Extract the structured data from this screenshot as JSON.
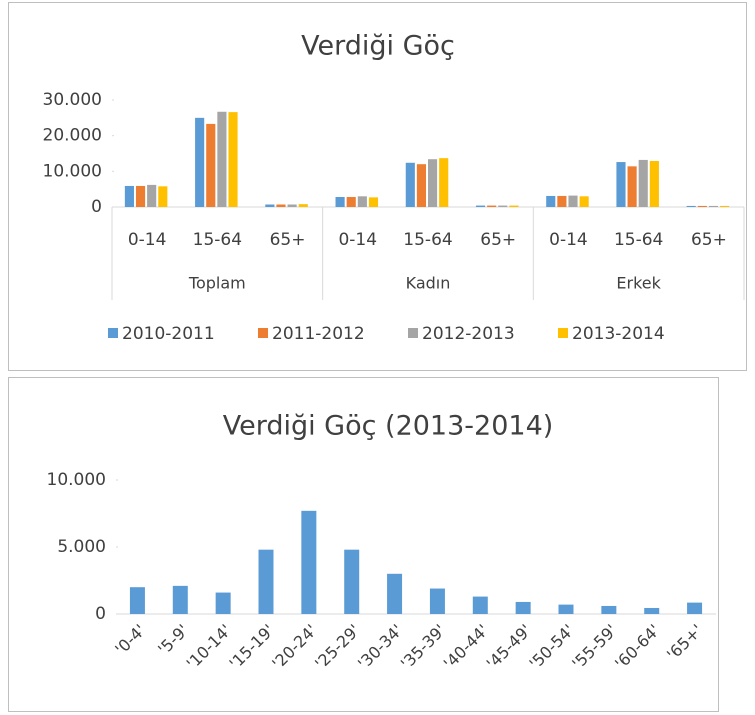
{
  "chart_data": [
    {
      "type": "grouped_bar",
      "title": "Verdiği Göç",
      "categories": [
        "0-14",
        "15-64",
        "65+",
        "0-14",
        "15-64",
        "65+",
        "0-14",
        "15-64",
        "65+"
      ],
      "category_groups": [
        "Toplam",
        "Kadın",
        "Erkek"
      ],
      "series": [
        {
          "name": "2010-2011",
          "color": "#5b9bd5",
          "values": [
            5900,
            25000,
            700,
            2800,
            12400,
            400,
            3100,
            12600,
            300
          ]
        },
        {
          "name": "2011-2012",
          "color": "#ed7d31",
          "values": [
            5900,
            23300,
            700,
            2800,
            12000,
            400,
            3100,
            11400,
            300
          ]
        },
        {
          "name": "2012-2013",
          "color": "#a5a5a5",
          "values": [
            6200,
            26700,
            700,
            3000,
            13400,
            400,
            3200,
            13200,
            300
          ]
        },
        {
          "name": "2013-2014",
          "color": "#ffc000",
          "values": [
            5800,
            26600,
            800,
            2700,
            13700,
            400,
            3000,
            12900,
            300
          ]
        }
      ],
      "ylim": [
        0,
        30000
      ],
      "yticks": [
        0,
        {
          "value": 10000,
          "label": "10.000"
        },
        {
          "value": 20000,
          "label": "20.000"
        },
        {
          "value": 30000,
          "label": "30.000"
        }
      ],
      "legend": "bottom"
    },
    {
      "type": "bar",
      "title": "Verdiği Göç (2013-2014)",
      "categories": [
        "'0-4'",
        "'5-9'",
        "'10-14'",
        "'15-19'",
        "'20-24'",
        "'25-29'",
        "'30-34'",
        "'35-39'",
        "'40-44'",
        "'45-49'",
        "'50-54'",
        "'55-59'",
        "'60-64'",
        "'65+'"
      ],
      "values": [
        2000,
        2100,
        1600,
        4800,
        7700,
        4800,
        3000,
        1900,
        1300,
        900,
        700,
        600,
        450,
        850
      ],
      "color": "#5b9bd5",
      "ylim": [
        0,
        10000
      ],
      "yticks": [
        0,
        {
          "value": 5000,
          "label": "5.000"
        },
        {
          "value": 10000,
          "label": "10.000"
        }
      ]
    }
  ]
}
